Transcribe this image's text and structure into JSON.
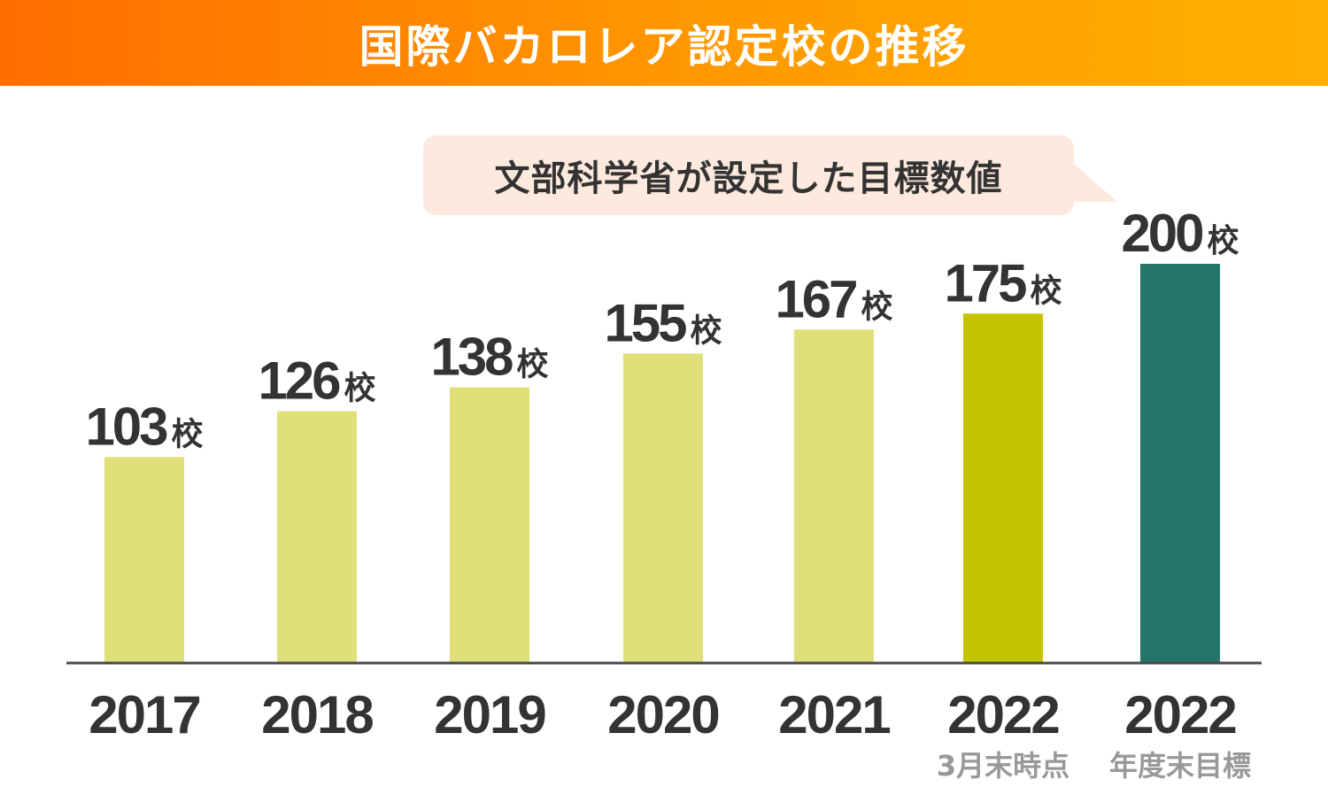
{
  "chart_data": {
    "type": "bar",
    "title": "国際バカロレア認定校の推移",
    "annotation": "文部科学省が設定した目標数値",
    "unit": "校",
    "categories": [
      "2017",
      "2018",
      "2019",
      "2020",
      "2021",
      "2022",
      "2022"
    ],
    "sublabels": [
      "",
      "",
      "",
      "",
      "",
      "3月末時点",
      "年度末目標"
    ],
    "values": [
      103,
      126,
      138,
      155,
      167,
      175,
      200
    ],
    "colors": [
      "#e0df78",
      "#e0df78",
      "#e0df78",
      "#e0df78",
      "#e0df78",
      "#c4c400",
      "#24766b"
    ],
    "ylim": [
      0,
      200
    ],
    "xlabel": "",
    "ylabel": "",
    "grid": false
  }
}
